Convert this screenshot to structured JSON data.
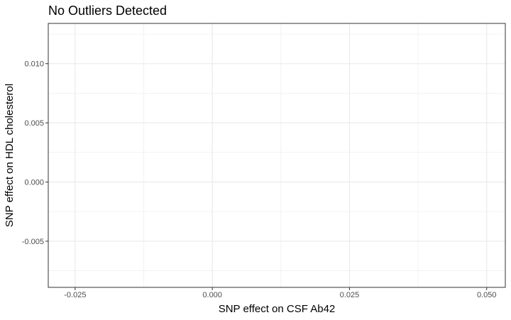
{
  "chart_data": {
    "type": "scatter",
    "title": "No Outliers Detected",
    "xlabel": "SNP effect on CSF Ab42",
    "ylabel": "SNP effect on HDL cholesterol",
    "xlim": [
      -0.0299,
      0.0534
    ],
    "ylim": [
      -0.0089,
      0.0134
    ],
    "x_ticks": [
      -0.025,
      0.0,
      0.025,
      0.05
    ],
    "x_tick_labels": [
      "-0.025",
      "0.000",
      "0.025",
      "0.050"
    ],
    "y_ticks": [
      -0.005,
      0.0,
      0.005,
      0.01
    ],
    "y_tick_labels": [
      "-0.005",
      "0.000",
      "0.005",
      "0.010"
    ],
    "points": [],
    "grid": true,
    "minor_grid": true,
    "panel_border_color": "#333333",
    "grid_color": "#ebebeb"
  }
}
